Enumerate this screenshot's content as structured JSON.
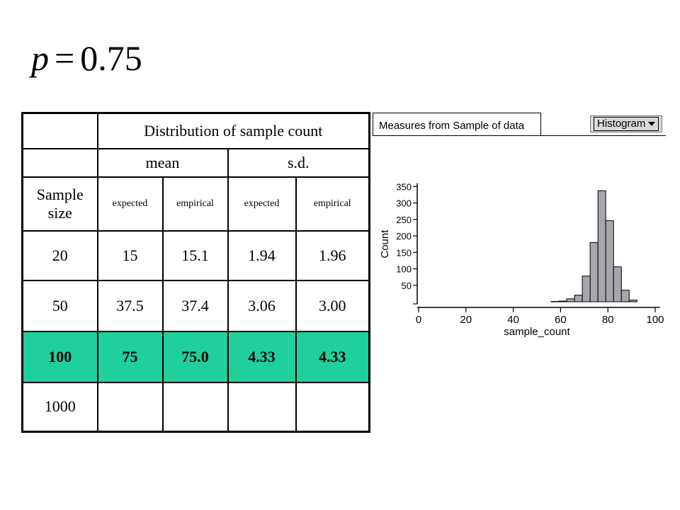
{
  "formula": {
    "variable": "p",
    "equals": "=",
    "value": "0.75"
  },
  "table": {
    "header": "Distribution of sample count",
    "mean_label": "mean",
    "sd_label": "s.d.",
    "sample_size_label": "Sample size",
    "sub_headers": [
      "expected",
      "empirical",
      "expected",
      "empirical"
    ],
    "rows": [
      [
        "20",
        "15",
        "15.1",
        "1.94",
        "1.96"
      ],
      [
        "50",
        "37.5",
        "37.4",
        "3.06",
        "3.00"
      ],
      [
        "100",
        "75",
        "75.0",
        "4.33",
        "4.33"
      ],
      [
        "1000",
        "",
        "",
        "",
        ""
      ]
    ],
    "highlight_row": 2,
    "highlight_color": "#1fcf9c"
  },
  "panel": {
    "tab_title": "Measures from Sample of data",
    "select_value": "Histogram",
    "select_icon": "chevron-down-icon"
  },
  "chart_data": {
    "type": "bar",
    "xlabel": "sample_count",
    "ylabel": "Count",
    "xlim": [
      0,
      102
    ],
    "ylim": [
      0,
      360
    ],
    "xticks": [
      "0",
      "20",
      "40",
      "60",
      "80",
      "100"
    ],
    "yticks": [
      "50",
      "100",
      "150",
      "200",
      "250",
      "300",
      "350"
    ],
    "bin_width": 3.3,
    "bin_start": 56,
    "values": [
      1,
      2,
      9,
      20,
      78,
      180,
      337,
      246,
      106,
      35,
      5
    ],
    "bar_fill": "#a6a6ad",
    "grid": false
  }
}
